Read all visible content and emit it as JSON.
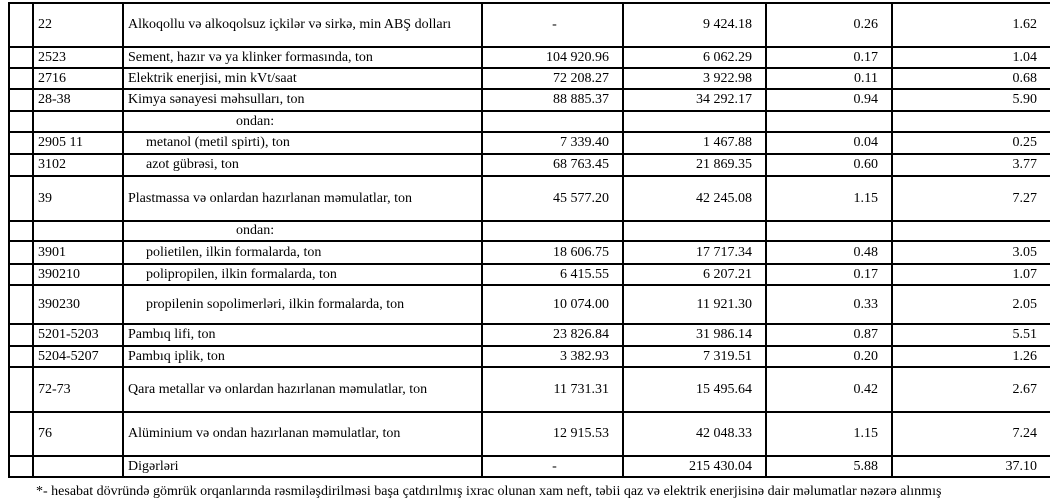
{
  "table": {
    "rows": [
      {
        "code": "22",
        "name": "Alkoqollu və alkoqolsuz içkilər və sirkə, min ABŞ dolları",
        "qty": "-",
        "value": "9 424.18",
        "share1": "0.26",
        "share2": "1.62",
        "h": 44,
        "indent": 0
      },
      {
        "code": "2523",
        "name": "Sement, hazır və ya klinker formasında, ton",
        "qty": "104 920.96",
        "value": "6 062.29",
        "share1": "0.17",
        "share2": "1.04",
        "h": 21,
        "indent": 0
      },
      {
        "code": "2716",
        "name": "Elektrik enerjisi, min kVt/saat",
        "qty": "72 208.27",
        "value": "3 922.98",
        "share1": "0.11",
        "share2": "0.68",
        "h": 21,
        "indent": 0
      },
      {
        "code": "28-38",
        "name": "Kimya sənayesi məhsulları, ton",
        "qty": "88 885.37",
        "value": "34 292.17",
        "share1": "0.94",
        "share2": "5.90",
        "h": 22,
        "indent": 0
      },
      {
        "code": "",
        "name": "ondan:",
        "qty": "",
        "value": "",
        "share1": "",
        "share2": "",
        "h": 21,
        "indent": 2
      },
      {
        "code": "2905 11",
        "name": "metanol (metil spirti), ton",
        "qty": "7 339.40",
        "value": "1 467.88",
        "share1": "0.04",
        "share2": "0.25",
        "h": 22,
        "indent": 1
      },
      {
        "code": "3102",
        "name": "azot gübrəsi, ton",
        "qty": "68 763.45",
        "value": "21 869.35",
        "share1": "0.60",
        "share2": "3.77",
        "h": 22,
        "indent": 1
      },
      {
        "code": "39",
        "name": "Plastmassa və onlardan hazırlanan məmulatlar, ton",
        "qty": "45 577.20",
        "value": "42 245.08",
        "share1": "1.15",
        "share2": "7.27",
        "h": 45,
        "indent": 0
      },
      {
        "code": "",
        "name": "ondan:",
        "qty": "",
        "value": "",
        "share1": "",
        "share2": "",
        "h": 20,
        "indent": 2
      },
      {
        "code": "3901",
        "name": "polietilen, ilkin formalarda, ton",
        "qty": "18 606.75",
        "value": "17 717.34",
        "share1": "0.48",
        "share2": "3.05",
        "h": 23,
        "indent": 1
      },
      {
        "code": "390210",
        "name": "polipropilen, ilkin formalarda, ton",
        "qty": "6 415.55",
        "value": "6 207.21",
        "share1": "0.17",
        "share2": "1.07",
        "h": 21,
        "indent": 1
      },
      {
        "code": "390230",
        "name": "propilenin sopolimerləri, ilkin formalarda, ton",
        "qty": "10 074.00",
        "value": "11 921.30",
        "share1": "0.33",
        "share2": "2.05",
        "h": 39,
        "indent": 1
      },
      {
        "code": "5201-5203",
        "name": "Pambıq lifi, ton",
        "qty": "23 826.84",
        "value": "31 986.14",
        "share1": "0.87",
        "share2": "5.51",
        "h": 22,
        "indent": 0
      },
      {
        "code": "5204-5207",
        "name": "Pambıq iplik, ton",
        "qty": "3 382.93",
        "value": "7 319.51",
        "share1": "0.20",
        "share2": "1.26",
        "h": 21,
        "indent": 0
      },
      {
        "code": "72-73",
        "name": "Qara metallar və onlardan hazırlanan məmulatlar, ton",
        "qty": "11 731.31",
        "value": "15 495.64",
        "share1": "0.42",
        "share2": "2.67",
        "h": 45,
        "indent": 0
      },
      {
        "code": "76",
        "name": "Alüminium və ondan hazırlanan məmulatlar, ton",
        "qty": "12 915.53",
        "value": "42 048.33",
        "share1": "1.15",
        "share2": "7.24",
        "h": 44,
        "indent": 0
      },
      {
        "code": "",
        "name": "Digərləri",
        "qty": "-",
        "value": "215 430.04",
        "share1": "5.88",
        "share2": "37.10",
        "h": 21,
        "indent": 0
      }
    ]
  },
  "footnote": "*- hesabat dövründə gömrük orqanlarında rəsmiləşdirilməsi başa çatdırılmış ixrac olunan xam neft, təbii qaz və elektrik enerjisinə dair məlumatlar nəzərə alınmış"
}
